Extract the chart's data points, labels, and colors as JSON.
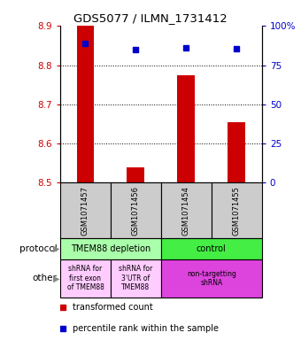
{
  "title": "GDS5077 / ILMN_1731412",
  "samples": [
    "GSM1071457",
    "GSM1071456",
    "GSM1071454",
    "GSM1071455"
  ],
  "bar_values": [
    8.9,
    8.54,
    8.775,
    8.655
  ],
  "bar_base": 8.5,
  "blue_values": [
    8.855,
    8.84,
    8.845,
    8.843
  ],
  "ylim": [
    8.5,
    8.9
  ],
  "yticks_left": [
    8.5,
    8.6,
    8.7,
    8.8,
    8.9
  ],
  "yticks_right": [
    0,
    25,
    50,
    75,
    100
  ],
  "ytick_right_labels": [
    "0",
    "25",
    "50",
    "75",
    "100%"
  ],
  "bar_color": "#cc0000",
  "blue_color": "#0000cc",
  "bar_width": 0.35,
  "protocol_row": [
    {
      "label": "TMEM88 depletion",
      "color": "#aaffaa",
      "span": [
        0,
        2
      ]
    },
    {
      "label": "control",
      "color": "#44ee44",
      "span": [
        2,
        4
      ]
    }
  ],
  "other_row": [
    {
      "label": "shRNA for\nfirst exon\nof TMEM88",
      "color": "#ffccff",
      "span": [
        0,
        1
      ]
    },
    {
      "label": "shRNA for\n3'UTR of\nTMEM88",
      "color": "#ffccff",
      "span": [
        1,
        2
      ]
    },
    {
      "label": "non-targetting\nshRNA",
      "color": "#dd44dd",
      "span": [
        2,
        4
      ]
    }
  ],
  "legend_items": [
    {
      "color": "#cc0000",
      "label": "transformed count"
    },
    {
      "color": "#0000cc",
      "label": "percentile rank within the sample"
    }
  ],
  "left_label_color": "#cc0000",
  "right_label_color": "#0000cc",
  "protocol_label": "protocol",
  "other_label": "other",
  "grid_lines": [
    8.6,
    8.7,
    8.8
  ]
}
